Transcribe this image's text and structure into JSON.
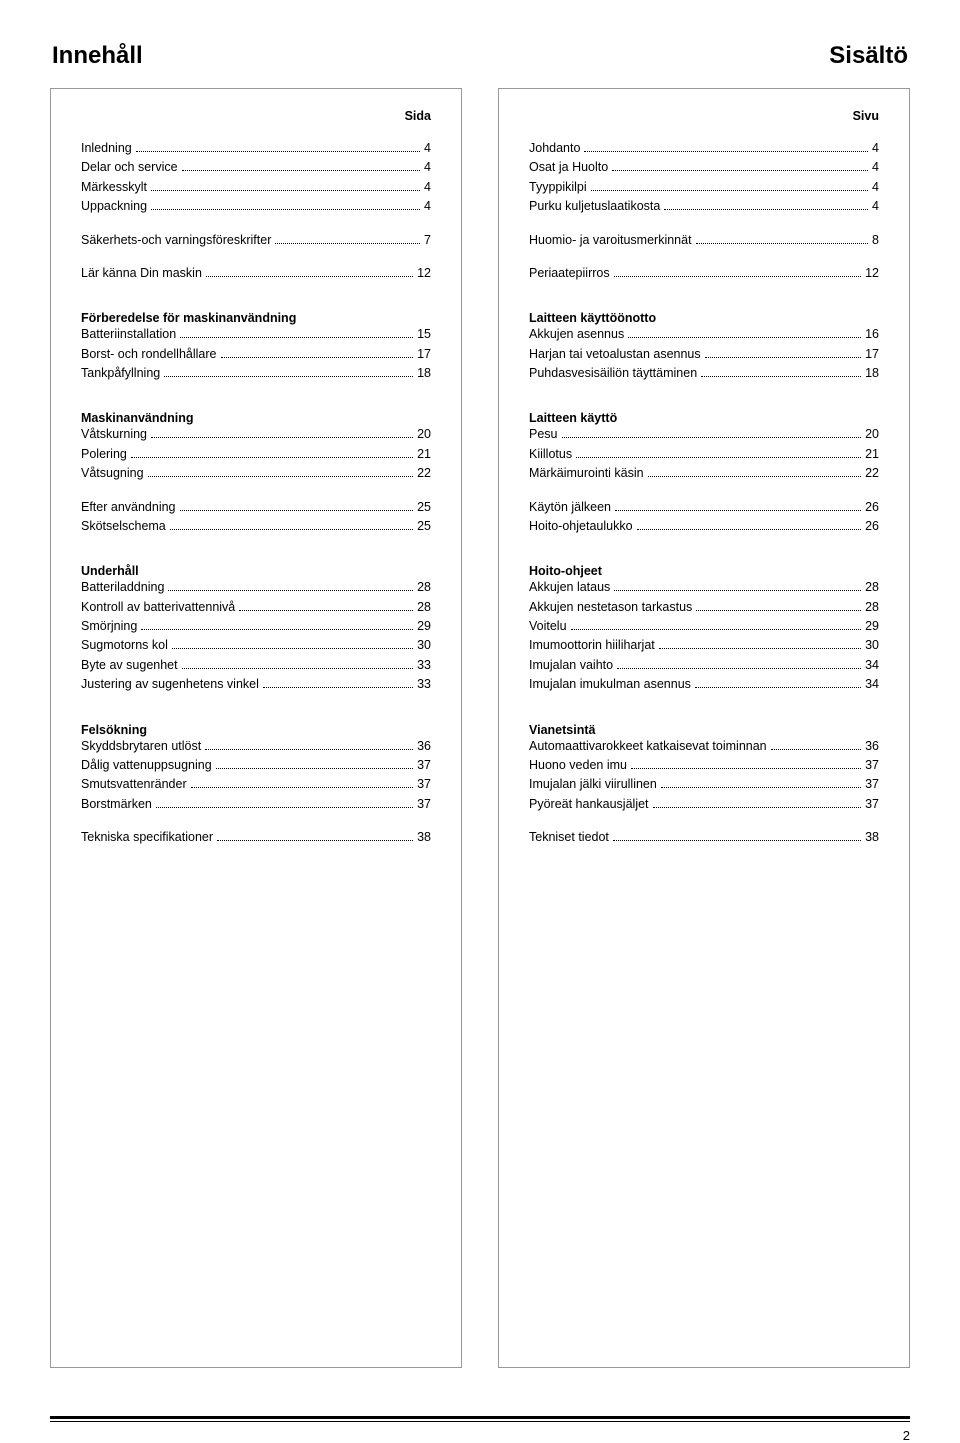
{
  "page": {
    "left_title": "Innehåll",
    "right_title": "Sisältö",
    "page_number": "2"
  },
  "left": {
    "page_label": "Sida",
    "sections": [
      {
        "type": "row",
        "label": "Inledning",
        "page": "4"
      },
      {
        "type": "row",
        "label": "Delar och service",
        "page": "4"
      },
      {
        "type": "row",
        "label": "Märkesskylt",
        "page": "4"
      },
      {
        "type": "row",
        "label": "Uppackning",
        "page": "4"
      },
      {
        "type": "gap"
      },
      {
        "type": "row",
        "label": "Säkerhets-och varningsföreskrifter",
        "page": "7"
      },
      {
        "type": "gap"
      },
      {
        "type": "row",
        "label": "Lär känna Din maskin",
        "page": "12"
      },
      {
        "type": "gap"
      },
      {
        "type": "header",
        "label": "Förberedelse för maskinanvändning"
      },
      {
        "type": "row",
        "label": "Batteriinstallation",
        "page": "15"
      },
      {
        "type": "row",
        "label": "Borst- och rondellhållare",
        "page": "17"
      },
      {
        "type": "row",
        "label": "Tankpåfyllning",
        "page": "18"
      },
      {
        "type": "gap"
      },
      {
        "type": "header",
        "label": "Maskinanvändning"
      },
      {
        "type": "row",
        "label": "Våtskurning",
        "page": "20"
      },
      {
        "type": "row",
        "label": "Polering",
        "page": "21"
      },
      {
        "type": "row",
        "label": "Våtsugning",
        "page": "22"
      },
      {
        "type": "gap"
      },
      {
        "type": "row",
        "label": "Efter användning",
        "page": "25"
      },
      {
        "type": "row",
        "label": "Skötselschema",
        "page": "25"
      },
      {
        "type": "gap"
      },
      {
        "type": "header",
        "label": "Underhåll"
      },
      {
        "type": "row",
        "label": "Batteriladdning",
        "page": "28"
      },
      {
        "type": "row",
        "label": "Kontroll av batterivattennivå",
        "page": "28"
      },
      {
        "type": "row",
        "label": "Smörjning",
        "page": "29"
      },
      {
        "type": "row",
        "label": "Sugmotorns kol",
        "page": "30"
      },
      {
        "type": "row",
        "label": "Byte av sugenhet",
        "page": "33"
      },
      {
        "type": "row",
        "label": "Justering av sugenhetens vinkel",
        "page": "33"
      },
      {
        "type": "gap"
      },
      {
        "type": "header",
        "label": "Felsökning"
      },
      {
        "type": "row",
        "label": "Skyddsbrytaren utlöst",
        "page": "36"
      },
      {
        "type": "row",
        "label": "Dålig vattenuppsugning",
        "page": "37"
      },
      {
        "type": "row",
        "label": "Smutsvattenränder",
        "page": "37"
      },
      {
        "type": "row",
        "label": "Borstmärken",
        "page": "37"
      },
      {
        "type": "gap"
      },
      {
        "type": "row",
        "label": "Tekniska specifikationer",
        "page": "38"
      }
    ]
  },
  "right": {
    "page_label": "Sivu",
    "sections": [
      {
        "type": "row",
        "label": "Johdanto",
        "page": "4"
      },
      {
        "type": "row",
        "label": "Osat ja Huolto",
        "page": "4"
      },
      {
        "type": "row",
        "label": "Tyyppikilpi",
        "page": "4"
      },
      {
        "type": "row",
        "label": "Purku kuljetuslaatikosta",
        "page": "4"
      },
      {
        "type": "gap"
      },
      {
        "type": "row",
        "label": "Huomio- ja varoitusmerkinnät",
        "page": "8"
      },
      {
        "type": "gap"
      },
      {
        "type": "row",
        "label": "Periaatepiirros",
        "page": "12"
      },
      {
        "type": "gap"
      },
      {
        "type": "header",
        "label": "Laitteen käyttöönotto"
      },
      {
        "type": "row",
        "label": "Akkujen asennus",
        "page": "16"
      },
      {
        "type": "row",
        "label": "Harjan tai vetoalustan asennus",
        "page": "17"
      },
      {
        "type": "row",
        "label": "Puhdasvesisäiliön täyttäminen",
        "page": "18"
      },
      {
        "type": "gap"
      },
      {
        "type": "header",
        "label": "Laitteen käyttö"
      },
      {
        "type": "row",
        "label": "Pesu",
        "page": "20"
      },
      {
        "type": "row",
        "label": "Kiillotus",
        "page": "21"
      },
      {
        "type": "row",
        "label": "Märkäimurointi käsin",
        "page": "22"
      },
      {
        "type": "gap"
      },
      {
        "type": "row",
        "label": "Käytön jälkeen",
        "page": "26"
      },
      {
        "type": "row",
        "label": "Hoito-ohjetaulukko",
        "page": "26"
      },
      {
        "type": "gap"
      },
      {
        "type": "header",
        "label": "Hoito-ohjeet"
      },
      {
        "type": "row",
        "label": "Akkujen lataus",
        "page": "28"
      },
      {
        "type": "row",
        "label": "Akkujen nestetason tarkastus",
        "page": "28"
      },
      {
        "type": "row",
        "label": "Voitelu",
        "page": "29"
      },
      {
        "type": "row",
        "label": "Imumoottorin hiiliharjat",
        "page": "30"
      },
      {
        "type": "row",
        "label": "Imujalan vaihto",
        "page": "34"
      },
      {
        "type": "row",
        "label": "Imujalan imukulman asennus",
        "page": "34"
      },
      {
        "type": "gap"
      },
      {
        "type": "header",
        "label": "Vianetsintä"
      },
      {
        "type": "row",
        "label": "Automaattivarokkeet katkaisevat toiminnan",
        "page": "36"
      },
      {
        "type": "row",
        "label": "Huono veden imu",
        "page": "37"
      },
      {
        "type": "row",
        "label": "Imujalan jälki viirullinen",
        "page": "37"
      },
      {
        "type": "row",
        "label": "Pyöreät hankausjäljet",
        "page": "37"
      },
      {
        "type": "gap"
      },
      {
        "type": "row",
        "label": "Tekniset tiedot",
        "page": "38"
      }
    ]
  }
}
